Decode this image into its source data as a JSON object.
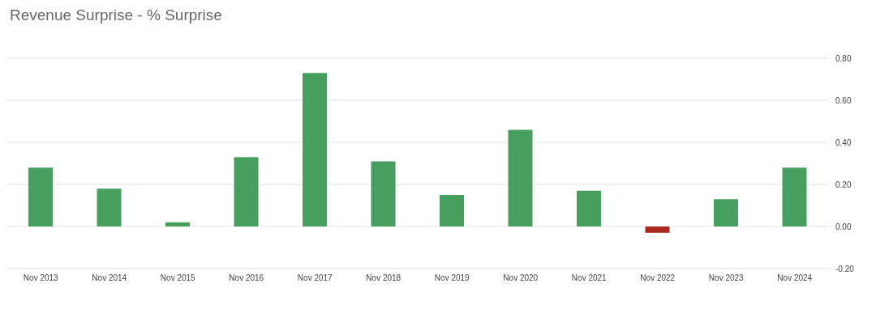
{
  "chart_data": {
    "type": "bar",
    "title": "Revenue Surprise - % Surprise",
    "categories": [
      "Nov 2013",
      "Nov 2014",
      "Nov 2015",
      "Nov 2016",
      "Nov 2017",
      "Nov 2018",
      "Nov 2019",
      "Nov 2020",
      "Nov 2021",
      "Nov 2022",
      "Nov 2023",
      "Nov 2024"
    ],
    "values": [
      0.28,
      0.18,
      0.02,
      0.33,
      0.73,
      0.31,
      0.15,
      0.46,
      0.17,
      -0.03,
      0.13,
      0.28
    ],
    "colors": [
      "#469e5f",
      "#469e5f",
      "#469e5f",
      "#469e5f",
      "#469e5f",
      "#469e5f",
      "#469e5f",
      "#469e5f",
      "#469e5f",
      "#a8291f",
      "#469e5f",
      "#469e5f"
    ],
    "ylim": [
      -0.2,
      0.8
    ],
    "yticks": [
      {
        "value": -0.2,
        "label": "-0.20"
      },
      {
        "value": 0,
        "label": "0.00"
      },
      {
        "value": 0.2,
        "label": "0.20"
      },
      {
        "value": 0.4,
        "label": "0.40"
      },
      {
        "value": 0.6,
        "label": "0.60"
      },
      {
        "value": 0.8,
        "label": "0.80"
      }
    ],
    "grid": "y"
  }
}
